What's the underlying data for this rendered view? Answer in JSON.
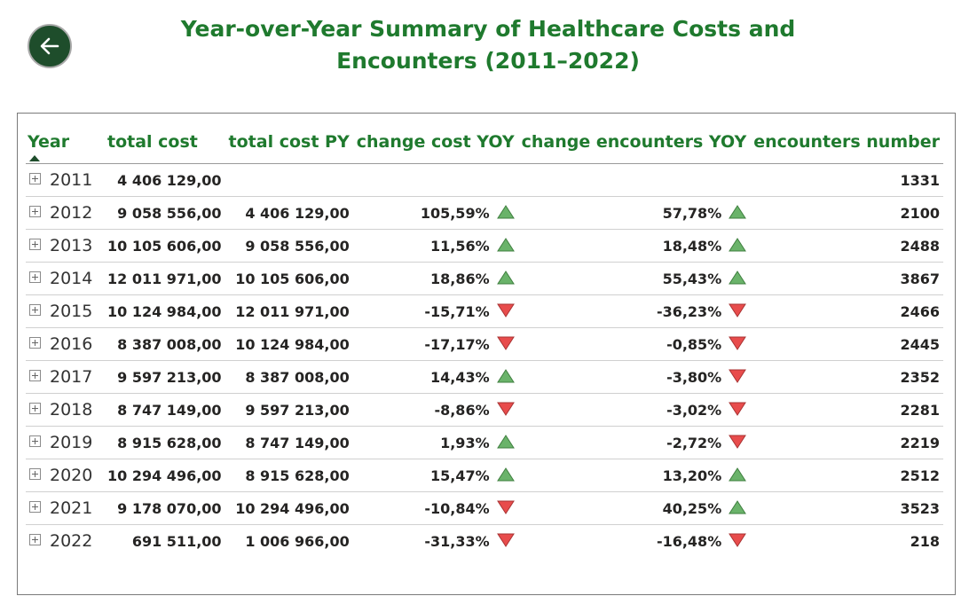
{
  "header": {
    "title_line1": "Year-over-Year Summary of Healthcare Costs and",
    "title_line2": "Encounters (2011–2022)"
  },
  "back_button": {
    "icon": "arrow-left-icon"
  },
  "table": {
    "columns": {
      "year": "Year",
      "total_cost": "total cost",
      "total_cost_py": "total cost PY",
      "change_cost_yoy": "change cost YOY",
      "change_encounters_yoy": "change encounters YOY",
      "encounters_number": "encounters number"
    },
    "indicator_colors": {
      "up": "#6ab36a",
      "down": "#e84c4c"
    },
    "rows": [
      {
        "year": "2011",
        "total_cost": "4 406 129,00",
        "total_cost_py": "",
        "change_cost": "",
        "cost_dir": "",
        "change_enc": "",
        "enc_dir": "",
        "encounters": "1331"
      },
      {
        "year": "2012",
        "total_cost": "9 058 556,00",
        "total_cost_py": "4 406 129,00",
        "change_cost": "105,59%",
        "cost_dir": "up",
        "change_enc": "57,78%",
        "enc_dir": "up",
        "encounters": "2100"
      },
      {
        "year": "2013",
        "total_cost": "10 105 606,00",
        "total_cost_py": "9 058 556,00",
        "change_cost": "11,56%",
        "cost_dir": "up",
        "change_enc": "18,48%",
        "enc_dir": "up",
        "encounters": "2488"
      },
      {
        "year": "2014",
        "total_cost": "12 011 971,00",
        "total_cost_py": "10 105 606,00",
        "change_cost": "18,86%",
        "cost_dir": "up",
        "change_enc": "55,43%",
        "enc_dir": "up",
        "encounters": "3867"
      },
      {
        "year": "2015",
        "total_cost": "10 124 984,00",
        "total_cost_py": "12 011 971,00",
        "change_cost": "-15,71%",
        "cost_dir": "down",
        "change_enc": "-36,23%",
        "enc_dir": "down",
        "encounters": "2466"
      },
      {
        "year": "2016",
        "total_cost": "8 387 008,00",
        "total_cost_py": "10 124 984,00",
        "change_cost": "-17,17%",
        "cost_dir": "down",
        "change_enc": "-0,85%",
        "enc_dir": "down",
        "encounters": "2445"
      },
      {
        "year": "2017",
        "total_cost": "9 597 213,00",
        "total_cost_py": "8 387 008,00",
        "change_cost": "14,43%",
        "cost_dir": "up",
        "change_enc": "-3,80%",
        "enc_dir": "down",
        "encounters": "2352"
      },
      {
        "year": "2018",
        "total_cost": "8 747 149,00",
        "total_cost_py": "9 597 213,00",
        "change_cost": "-8,86%",
        "cost_dir": "down",
        "change_enc": "-3,02%",
        "enc_dir": "down",
        "encounters": "2281"
      },
      {
        "year": "2019",
        "total_cost": "8 915 628,00",
        "total_cost_py": "8 747 149,00",
        "change_cost": "1,93%",
        "cost_dir": "up",
        "change_enc": "-2,72%",
        "enc_dir": "down",
        "encounters": "2219"
      },
      {
        "year": "2020",
        "total_cost": "10 294 496,00",
        "total_cost_py": "8 915 628,00",
        "change_cost": "15,47%",
        "cost_dir": "up",
        "change_enc": "13,20%",
        "enc_dir": "up",
        "encounters": "2512"
      },
      {
        "year": "2021",
        "total_cost": "9 178 070,00",
        "total_cost_py": "10 294 496,00",
        "change_cost": "-10,84%",
        "cost_dir": "down",
        "change_enc": "40,25%",
        "enc_dir": "up",
        "encounters": "3523"
      },
      {
        "year": "2022",
        "total_cost": "691 511,00",
        "total_cost_py": "1 006 966,00",
        "change_cost": "-31,33%",
        "cost_dir": "down",
        "change_enc": "-16,48%",
        "enc_dir": "down",
        "encounters": "218"
      }
    ]
  }
}
